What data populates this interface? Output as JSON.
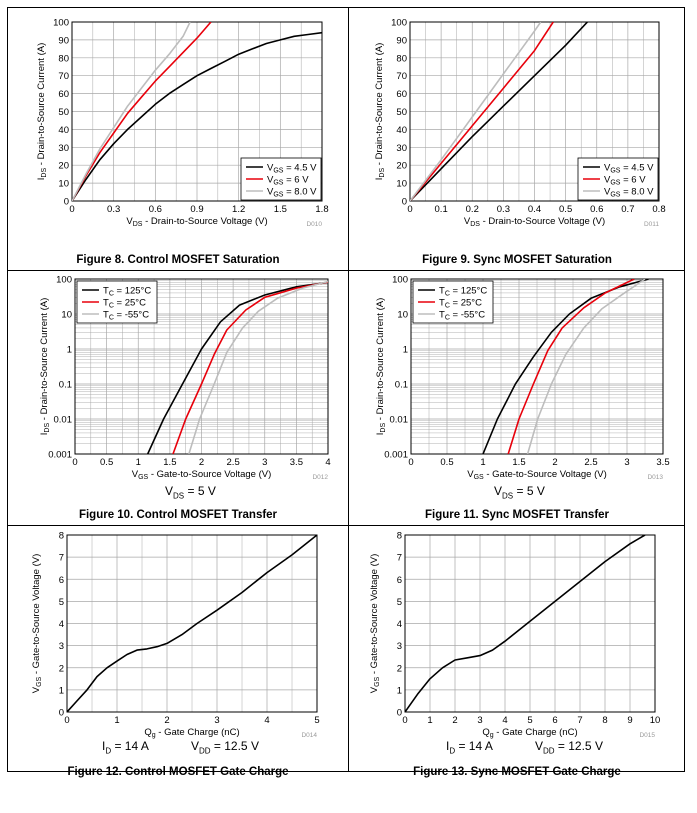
{
  "chart_data": [
    {
      "type": "line",
      "caption": "Figure 8. Control MOSFET Saturation",
      "code": "D010",
      "xlabel": [
        "V",
        "DS",
        " - Drain-to-Source Voltage (V)"
      ],
      "ylabel": [
        "I",
        "DS",
        " - Drain-to-Source Current (A)"
      ],
      "xlim": [
        0,
        1.8
      ],
      "ylim": [
        0,
        100
      ],
      "yscale": "linear",
      "xticks": [
        0,
        0.3,
        0.6,
        0.9,
        1.2,
        1.5,
        1.8
      ],
      "xtick_labels": [
        "0",
        "0.3",
        "0.6",
        "0.9",
        "1.2",
        "1.5",
        "1.8"
      ],
      "yticks": [
        0,
        10,
        20,
        30,
        40,
        50,
        60,
        70,
        80,
        90,
        100
      ],
      "ytick_labels": [
        "0",
        "10",
        "20",
        "30",
        "40",
        "50",
        "60",
        "70",
        "80",
        "90",
        "100"
      ],
      "minor_x": 2,
      "minor_y": 1,
      "legend_position": "bottom-right",
      "series": [
        {
          "name": [
            "V",
            "GS",
            " = 4.5 V"
          ],
          "color": "#000000",
          "x": [
            0,
            0.1,
            0.2,
            0.3,
            0.4,
            0.5,
            0.6,
            0.7,
            0.8,
            0.9,
            1.0,
            1.1,
            1.2,
            1.3,
            1.4,
            1.5,
            1.6,
            1.7,
            1.8
          ],
          "y": [
            0,
            12,
            23,
            32,
            40,
            47,
            54,
            60,
            65,
            70,
            74,
            78,
            82,
            85,
            88,
            90,
            92,
            93,
            94
          ]
        },
        {
          "name": [
            "V",
            "GS",
            " = 6 V"
          ],
          "color": "#e8000b",
          "x": [
            0,
            0.1,
            0.2,
            0.3,
            0.4,
            0.5,
            0.6,
            0.7,
            0.8,
            0.9,
            1.0
          ],
          "y": [
            0,
            14,
            27,
            38,
            49,
            58,
            67,
            75,
            83,
            91,
            100
          ]
        },
        {
          "name": [
            "V",
            "GS",
            " = 8.0 V"
          ],
          "color": "#bdbdbd",
          "x": [
            0,
            0.1,
            0.2,
            0.3,
            0.4,
            0.5,
            0.6,
            0.7,
            0.8,
            0.85
          ],
          "y": [
            0,
            15,
            29,
            41,
            53,
            63,
            73,
            82,
            92,
            100
          ]
        }
      ]
    },
    {
      "type": "line",
      "caption": "Figure 9. Sync MOSFET Saturation",
      "code": "D011",
      "xlabel": [
        "V",
        "DS",
        " - Drain-to-Source Voltage (V)"
      ],
      "ylabel": [
        "I",
        "DS",
        " - Drain-to-Source Current (A)"
      ],
      "xlim": [
        0,
        0.8
      ],
      "ylim": [
        0,
        100
      ],
      "yscale": "linear",
      "xticks": [
        0,
        0.1,
        0.2,
        0.3,
        0.4,
        0.5,
        0.6,
        0.7,
        0.8
      ],
      "xtick_labels": [
        "0",
        "0.1",
        "0.2",
        "0.3",
        "0.4",
        "0.5",
        "0.6",
        "0.7",
        "0.8"
      ],
      "yticks": [
        0,
        10,
        20,
        30,
        40,
        50,
        60,
        70,
        80,
        90,
        100
      ],
      "ytick_labels": [
        "0",
        "10",
        "20",
        "30",
        "40",
        "50",
        "60",
        "70",
        "80",
        "90",
        "100"
      ],
      "minor_x": 2,
      "minor_y": 1,
      "legend_position": "bottom-right",
      "series": [
        {
          "name": [
            "V",
            "GS",
            " = 4.5 V"
          ],
          "color": "#000000",
          "x": [
            0,
            0.1,
            0.2,
            0.3,
            0.4,
            0.5,
            0.57
          ],
          "y": [
            0,
            18,
            36,
            53,
            70,
            87,
            100
          ]
        },
        {
          "name": [
            "V",
            "GS",
            " = 6 V"
          ],
          "color": "#e8000b",
          "x": [
            0,
            0.1,
            0.2,
            0.3,
            0.4,
            0.46
          ],
          "y": [
            0,
            21,
            42,
            63,
            84,
            100
          ]
        },
        {
          "name": [
            "V",
            "GS",
            " = 8.0 V"
          ],
          "color": "#bdbdbd",
          "x": [
            0,
            0.1,
            0.2,
            0.3,
            0.4,
            0.42
          ],
          "y": [
            0,
            23,
            47,
            71,
            95,
            100
          ]
        }
      ]
    },
    {
      "type": "line",
      "caption": "Figure 10. Control MOSFET Transfer",
      "code": "D012",
      "condition": [
        "V",
        "DS",
        " = 5 V"
      ],
      "xlabel": [
        "V",
        "GS",
        " - Gate-to-Source Voltage (V)"
      ],
      "ylabel": [
        "I",
        "DS",
        " - Drain-to-Source Current (A)"
      ],
      "xlim": [
        0,
        4
      ],
      "ylim": [
        0.001,
        100
      ],
      "yscale": "log",
      "xticks": [
        0,
        0.5,
        1,
        1.5,
        2,
        2.5,
        3,
        3.5,
        4
      ],
      "xtick_labels": [
        "0",
        "0.5",
        "1",
        "1.5",
        "2",
        "2.5",
        "3",
        "3.5",
        "4"
      ],
      "yticks": [
        0.001,
        0.01,
        0.1,
        1,
        10,
        100
      ],
      "ytick_labels": [
        "0.001",
        "0.01",
        "0.1",
        "1",
        "10",
        "100"
      ],
      "minor_x": 2,
      "minor_y": 9,
      "legend_position": "top-left",
      "series": [
        {
          "name": [
            "T",
            "C",
            " = 125°C"
          ],
          "color": "#000000",
          "x": [
            1.15,
            1.4,
            1.7,
            2.0,
            2.3,
            2.6,
            3.0,
            3.5,
            4.0
          ],
          "y": [
            0.001,
            0.01,
            0.1,
            1,
            6,
            18,
            35,
            60,
            80
          ]
        },
        {
          "name": [
            "T",
            "C",
            " = 25°C"
          ],
          "color": "#e8000b",
          "x": [
            1.55,
            1.75,
            2.0,
            2.2,
            2.4,
            2.7,
            3.0,
            3.5,
            4.0
          ],
          "y": [
            0.001,
            0.01,
            0.1,
            0.7,
            3.5,
            13,
            30,
            55,
            82
          ]
        },
        {
          "name": [
            "T",
            "C",
            " = -55°C"
          ],
          "color": "#bdbdbd",
          "x": [
            1.8,
            1.97,
            2.2,
            2.4,
            2.65,
            2.9,
            3.2,
            3.6,
            4.0
          ],
          "y": [
            0.001,
            0.01,
            0.1,
            0.8,
            4,
            12,
            28,
            55,
            85
          ]
        }
      ]
    },
    {
      "type": "line",
      "caption": "Figure 11. Sync MOSFET Transfer",
      "code": "D013",
      "condition": [
        "V",
        "DS",
        " = 5 V"
      ],
      "xlabel": [
        "V",
        "GS",
        " - Gate-to-Source Voltage (V)"
      ],
      "ylabel": [
        "I",
        "DS",
        " - Drain-to-Source Current (A)"
      ],
      "xlim": [
        0,
        3.5
      ],
      "ylim": [
        0.001,
        100
      ],
      "yscale": "log",
      "xticks": [
        0,
        0.5,
        1,
        1.5,
        2,
        2.5,
        3,
        3.5
      ],
      "xtick_labels": [
        "0",
        "0.5",
        "1",
        "1.5",
        "2",
        "2.5",
        "3",
        "3.5"
      ],
      "yticks": [
        0.001,
        0.01,
        0.1,
        1,
        10,
        100
      ],
      "ytick_labels": [
        "0.001",
        "0.01",
        "0.1",
        "1",
        "10",
        "100"
      ],
      "minor_x": 2,
      "minor_y": 9,
      "legend_position": "top-left",
      "series": [
        {
          "name": [
            "T",
            "C",
            " = 125°C"
          ],
          "color": "#000000",
          "x": [
            1.0,
            1.2,
            1.45,
            1.7,
            1.95,
            2.2,
            2.5,
            2.9,
            3.3
          ],
          "y": [
            0.001,
            0.01,
            0.1,
            0.6,
            3,
            10,
            28,
            60,
            100
          ]
        },
        {
          "name": [
            "T",
            "C",
            " = 25°C"
          ],
          "color": "#e8000b",
          "x": [
            1.35,
            1.5,
            1.7,
            1.9,
            2.1,
            2.4,
            2.7,
            3.1
          ],
          "y": [
            0.001,
            0.01,
            0.1,
            0.9,
            4,
            15,
            40,
            100
          ]
        },
        {
          "name": [
            "T",
            "C",
            " = -55°C"
          ],
          "color": "#bdbdbd",
          "x": [
            1.62,
            1.76,
            1.95,
            2.15,
            2.4,
            2.65,
            2.95,
            3.25
          ],
          "y": [
            0.001,
            0.01,
            0.1,
            0.7,
            4,
            14,
            38,
            100
          ]
        }
      ]
    },
    {
      "type": "line",
      "caption": "Figure 12. Control MOSFET Gate Charge",
      "code": "D014",
      "condition": [
        "I",
        "D",
        " = 14 A",
        "V",
        "DD",
        " = 12.5 V"
      ],
      "xlabel": [
        "Q",
        "g",
        " - Gate Charge (nC)"
      ],
      "ylabel": [
        "V",
        "GS",
        " - Gate-to-Source Voltage (V)"
      ],
      "xlim": [
        0,
        5
      ],
      "ylim": [
        0,
        8
      ],
      "yscale": "linear",
      "xticks": [
        0,
        1,
        2,
        3,
        4,
        5
      ],
      "xtick_labels": [
        "0",
        "1",
        "2",
        "3",
        "4",
        "5"
      ],
      "yticks": [
        0,
        1,
        2,
        3,
        4,
        5,
        6,
        7,
        8
      ],
      "ytick_labels": [
        "0",
        "1",
        "2",
        "3",
        "4",
        "5",
        "6",
        "7",
        "8"
      ],
      "minor_x": 2,
      "minor_y": 1,
      "legend_position": "none",
      "series": [
        {
          "color": "#000000",
          "x": [
            0,
            0.2,
            0.4,
            0.6,
            0.8,
            1.0,
            1.2,
            1.4,
            1.6,
            1.8,
            2.0,
            2.3,
            2.6,
            3.0,
            3.5,
            4.0,
            4.5,
            5.0
          ],
          "y": [
            0,
            0.5,
            1.0,
            1.6,
            2.0,
            2.3,
            2.6,
            2.8,
            2.85,
            2.95,
            3.1,
            3.5,
            4.0,
            4.6,
            5.4,
            6.3,
            7.1,
            8.0
          ]
        }
      ]
    },
    {
      "type": "line",
      "caption": "Figure 13. Sync MOSFET Gate Charge",
      "code": "D015",
      "condition": [
        "I",
        "D",
        " = 14 A",
        "V",
        "DD",
        " = 12.5 V"
      ],
      "xlabel": [
        "Q",
        "g",
        " - Gate Charge (nC)"
      ],
      "ylabel": [
        "V",
        "GS",
        " - Gate-to-Source Voltage (V)"
      ],
      "xlim": [
        0,
        10
      ],
      "ylim": [
        0,
        8
      ],
      "yscale": "linear",
      "xticks": [
        0,
        1,
        2,
        3,
        4,
        5,
        6,
        7,
        8,
        9,
        10
      ],
      "xtick_labels": [
        "0",
        "1",
        "2",
        "3",
        "4",
        "5",
        "6",
        "7",
        "8",
        "9",
        "10"
      ],
      "yticks": [
        0,
        1,
        2,
        3,
        4,
        5,
        6,
        7,
        8
      ],
      "ytick_labels": [
        "0",
        "1",
        "2",
        "3",
        "4",
        "5",
        "6",
        "7",
        "8"
      ],
      "minor_x": 1,
      "minor_y": 1,
      "legend_position": "none",
      "series": [
        {
          "color": "#000000",
          "x": [
            0,
            0.5,
            1.0,
            1.5,
            2.0,
            2.5,
            3.0,
            3.5,
            4.0,
            5.0,
            6.0,
            7.0,
            8.0,
            9.0,
            9.6
          ],
          "y": [
            0,
            0.8,
            1.5,
            2.0,
            2.35,
            2.45,
            2.55,
            2.8,
            3.2,
            4.1,
            5.0,
            5.9,
            6.8,
            7.6,
            8.0
          ]
        }
      ]
    }
  ]
}
